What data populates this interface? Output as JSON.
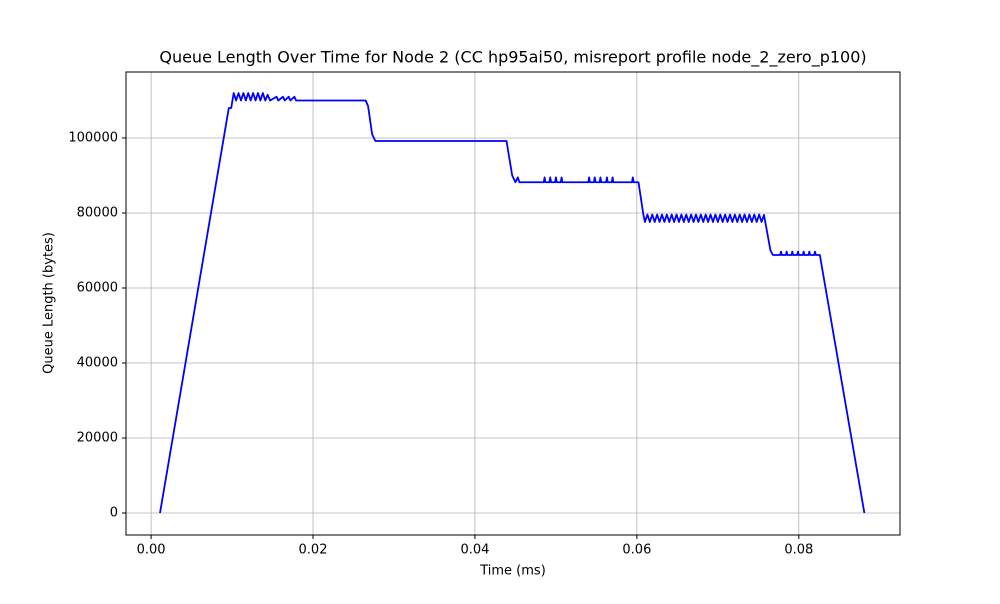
{
  "chart_data": {
    "type": "line",
    "title": "Queue Length Over Time for Node 2 (CC hp95ai50, misreport profile node_2_zero_p100)",
    "x_label": "Time (ms)",
    "y_label": "Queue Length (bytes)",
    "xlim": [
      -0.0031,
      0.0925
    ],
    "ylim": [
      -5867,
      117600
    ],
    "xticks": [
      {
        "value": 0,
        "label": "0.00"
      },
      {
        "value": 0.02,
        "label": "0.02"
      },
      {
        "value": 0.04,
        "label": "0.04"
      },
      {
        "value": 0.06,
        "label": "0.06"
      },
      {
        "value": 0.08,
        "label": "0.08"
      }
    ],
    "yticks": [
      0,
      20000,
      40000,
      60000,
      80000,
      100000
    ],
    "grid": true,
    "series": [
      {
        "color": "#0000ff",
        "x": [
          0.0011,
          0.0096,
          0.0099,
          0.0102,
          0.0105,
          0.0108,
          0.0111,
          0.0114,
          0.0117,
          0.012,
          0.0123,
          0.0126,
          0.0129,
          0.0132,
          0.0135,
          0.0138,
          0.0141,
          0.0144,
          0.0147,
          0.0155,
          0.0157,
          0.0163,
          0.0165,
          0.017,
          0.0172,
          0.0177,
          0.0179,
          0.0265,
          0.0268,
          0.0273,
          0.0277,
          0.0439,
          0.0446,
          0.045,
          0.0453,
          0.0455,
          0.0485,
          0.0486,
          0.0487,
          0.0492,
          0.0493,
          0.0494,
          0.0499,
          0.05,
          0.0501,
          0.0506,
          0.0507,
          0.0508,
          0.054,
          0.0541,
          0.0542,
          0.0547,
          0.0548,
          0.0549,
          0.0554,
          0.0555,
          0.0556,
          0.0562,
          0.0563,
          0.0564,
          0.0569,
          0.057,
          0.0571,
          0.0594,
          0.0595,
          0.0596,
          0.0602,
          0.0608,
          0.061,
          0.0613,
          0.0616,
          0.0619,
          0.0622,
          0.0625,
          0.0628,
          0.0631,
          0.0634,
          0.0637,
          0.064,
          0.0643,
          0.0646,
          0.0649,
          0.0652,
          0.0655,
          0.0658,
          0.0661,
          0.0664,
          0.0667,
          0.067,
          0.0673,
          0.0676,
          0.0679,
          0.0682,
          0.0685,
          0.0688,
          0.0691,
          0.0694,
          0.0697,
          0.07,
          0.0703,
          0.0706,
          0.0709,
          0.0712,
          0.0715,
          0.0718,
          0.0721,
          0.0724,
          0.0727,
          0.073,
          0.0733,
          0.0736,
          0.0739,
          0.0742,
          0.0745,
          0.0748,
          0.0751,
          0.0754,
          0.0757,
          0.0765,
          0.0768,
          0.0777,
          0.0778,
          0.0779,
          0.0784,
          0.0785,
          0.0786,
          0.0791,
          0.0792,
          0.0793,
          0.0798,
          0.0799,
          0.08,
          0.0805,
          0.0806,
          0.0807,
          0.0812,
          0.0813,
          0.0814,
          0.0819,
          0.082,
          0.0821,
          0.0826,
          0.0881
        ],
        "values": [
          0,
          108000,
          108000,
          112000,
          110000,
          112000,
          110000,
          112000,
          110000,
          112000,
          110000,
          112000,
          110000,
          112000,
          110000,
          112000,
          110000,
          111500,
          110000,
          111000,
          110000,
          111000,
          110000,
          111000,
          110000,
          111000,
          110000,
          110000,
          108500,
          101000,
          99200,
          99200,
          90000,
          88200,
          89500,
          88200,
          88200,
          89500,
          88200,
          88200,
          89500,
          88200,
          88200,
          89500,
          88200,
          88200,
          89500,
          88200,
          88200,
          89500,
          88200,
          88200,
          89500,
          88200,
          88200,
          89500,
          88200,
          88200,
          89500,
          88200,
          88200,
          89500,
          88200,
          88200,
          89500,
          88200,
          88200,
          79600,
          77600,
          79600,
          77600,
          79600,
          77600,
          79600,
          77600,
          79600,
          77600,
          79600,
          77600,
          79600,
          77600,
          79600,
          77600,
          79600,
          77600,
          79600,
          77600,
          79600,
          77600,
          79600,
          77600,
          79600,
          77600,
          79600,
          77600,
          79600,
          77600,
          79600,
          77600,
          79600,
          77600,
          79600,
          77600,
          79600,
          77600,
          79600,
          77600,
          79600,
          77600,
          79600,
          77600,
          79600,
          77600,
          79600,
          77600,
          79600,
          77600,
          79500,
          70000,
          68800,
          68800,
          69700,
          68800,
          68800,
          69700,
          68800,
          68800,
          69700,
          68800,
          68800,
          69700,
          68800,
          68800,
          69700,
          68800,
          68800,
          69700,
          68800,
          68800,
          69700,
          68800,
          68800,
          0
        ]
      }
    ]
  }
}
